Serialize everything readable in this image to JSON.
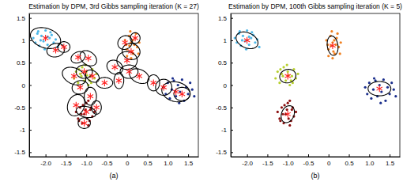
{
  "chart_data": [
    {
      "type": "scatter",
      "title": "Estimation by DPM, 3rd Gibbs sampling iteration (K = 27)",
      "caption": "(a)",
      "grid": false,
      "xlim": [
        -2.4,
        1.75
      ],
      "ylim": [
        -1.6,
        1.6
      ],
      "xticks": [
        {
          "value": -2,
          "label": "-2.0"
        },
        -1.5,
        {
          "value": -1,
          "label": "-1.0"
        },
        -0.5,
        0,
        0.5,
        {
          "value": 1,
          "label": "1.0"
        },
        1.5
      ],
      "yticks": [
        -1.5,
        -1,
        -0.5,
        0,
        0.5,
        1,
        1.5
      ],
      "series": [
        {
          "color": "#4fb8e8",
          "x": [
            -2.3,
            -2.25,
            -2.2,
            -2.15,
            -2.1,
            -2.05,
            -2.0,
            -1.95,
            -1.9,
            -1.85,
            -1.8,
            -1.75,
            -1.7,
            -2.18,
            -2.02,
            -1.88,
            -2.12,
            -1.95
          ],
          "values": [
            1.05,
            0.95,
            1.15,
            0.88,
            1.1,
            0.98,
            1.22,
            0.9,
            1.05,
            1.12,
            0.95,
            1.02,
            0.85,
            1.2,
            0.8,
            1.18,
            1.0,
            1.08
          ]
        },
        {
          "color": "#f08020",
          "x": [
            -0.05,
            0.0,
            0.05,
            0.1,
            0.15,
            0.2,
            0.25,
            0.3,
            0.0,
            0.08,
            0.18,
            0.12,
            0.22,
            -0.02,
            0.28,
            0.06,
            0.14,
            0.1
          ],
          "values": [
            1.0,
            0.8,
            1.1,
            0.95,
            0.7,
            1.05,
            0.85,
            0.95,
            0.65,
            1.2,
            0.9,
            0.75,
            1.15,
            0.9,
            0.7,
            0.88,
            1.0,
            0.6
          ]
        },
        {
          "color": "#b8d030",
          "x": [
            -1.3,
            -1.25,
            -1.2,
            -1.15,
            -1.1,
            -1.05,
            -1.0,
            -0.95,
            -0.9,
            -0.85,
            -0.8,
            -0.75,
            -1.12,
            -1.02,
            -0.92,
            -1.18,
            -0.98,
            -0.88
          ],
          "values": [
            0.15,
            0.3,
            0.05,
            0.25,
            0.4,
            0.1,
            0.3,
            0.0,
            0.2,
            0.35,
            0.15,
            0.25,
            0.2,
            0.45,
            0.1,
            0.35,
            0.22,
            0.05
          ]
        },
        {
          "color": "#8b1010",
          "x": [
            -1.25,
            -1.2,
            -1.15,
            -1.1,
            -1.05,
            -1.0,
            -0.95,
            -0.9,
            -0.85,
            -0.8,
            -1.08,
            -0.98,
            -0.92,
            -1.12,
            -1.02,
            -0.88,
            -1.18,
            -0.95
          ],
          "values": [
            -0.6,
            -0.75,
            -0.5,
            -0.85,
            -0.65,
            -0.4,
            -0.9,
            -0.55,
            -0.7,
            -0.6,
            -0.45,
            -0.75,
            -0.8,
            -0.65,
            -0.55,
            -0.5,
            -0.8,
            -0.35
          ]
        },
        {
          "color": "#1a2e8c",
          "x": [
            0.9,
            0.95,
            1.0,
            1.05,
            1.1,
            1.15,
            1.2,
            1.25,
            1.3,
            1.35,
            1.4,
            1.45,
            1.5,
            1.55,
            1.6,
            1.65,
            1.28,
            1.12
          ],
          "values": [
            -0.05,
            -0.2,
            0.05,
            -0.3,
            -0.1,
            0.1,
            -0.25,
            0.0,
            -0.15,
            0.12,
            -0.35,
            -0.05,
            -0.2,
            0.05,
            -0.1,
            -0.25,
            -0.4,
            0.15
          ]
        }
      ],
      "components": {
        "x": [
          -2.0,
          -1.75,
          -1.55,
          -1.2,
          -0.95,
          -1.3,
          -1.05,
          -0.85,
          -1.15,
          -0.9,
          -1.25,
          -1.0,
          -0.75,
          -1.05,
          -0.55,
          -0.3,
          -0.2,
          0.0,
          0.1,
          -0.05,
          0.2,
          0.05,
          0.3,
          0.65,
          0.9,
          1.2,
          1.35
        ],
        "y": [
          1.05,
          0.78,
          0.85,
          0.62,
          0.6,
          0.2,
          0.3,
          0.2,
          -0.05,
          -0.25,
          -0.45,
          -0.6,
          -0.5,
          -0.85,
          0.05,
          0.4,
          0.1,
          0.55,
          0.75,
          0.95,
          1.05,
          0.3,
          0.2,
          0.05,
          -0.05,
          -0.15,
          -0.2
        ],
        "rx": [
          0.38,
          0.22,
          0.15,
          0.18,
          0.15,
          0.18,
          0.2,
          0.18,
          0.2,
          0.15,
          0.25,
          0.12,
          0.12,
          0.15,
          0.12,
          0.15,
          0.12,
          0.2,
          0.18,
          0.18,
          0.12,
          0.22,
          0.15,
          0.15,
          0.18,
          0.35,
          0.2
        ],
        "ry": [
          0.22,
          0.15,
          0.12,
          0.12,
          0.22,
          0.3,
          0.15,
          0.12,
          0.15,
          0.2,
          0.2,
          0.25,
          0.15,
          0.12,
          0.2,
          0.2,
          0.18,
          0.25,
          0.22,
          0.15,
          0.12,
          0.15,
          0.25,
          0.18,
          0.2,
          0.22,
          0.15
        ],
        "angle": [
          -15,
          10,
          0,
          20,
          60,
          70,
          0,
          -30,
          10,
          0,
          60,
          80,
          0,
          0,
          90,
          70,
          0,
          90,
          80,
          20,
          0,
          0,
          70,
          0,
          90,
          -10,
          0
        ]
      }
    },
    {
      "type": "scatter",
      "title": "Estimation by DPM, 100th Gibbs sampling iteration (K = 5)",
      "caption": "(b)",
      "grid": false,
      "xlim": [
        -2.4,
        1.75
      ],
      "ylim": [
        -1.6,
        1.6
      ],
      "xticks": [
        {
          "value": -2,
          "label": "-2.0"
        },
        -1.5,
        {
          "value": -1,
          "label": "-1.0"
        },
        -0.5,
        0,
        0.5,
        {
          "value": 1,
          "label": "1.0"
        },
        1.5
      ],
      "yticks": [
        -1.5,
        -1,
        -0.5,
        0,
        0.5,
        1,
        1.5
      ],
      "series": [
        {
          "color": "#4fb8e8",
          "x": [
            -2.3,
            -2.25,
            -2.2,
            -2.15,
            -2.1,
            -2.05,
            -2.0,
            -1.95,
            -1.9,
            -1.85,
            -1.8,
            -1.75,
            -1.7,
            -2.18,
            -2.02,
            -1.88,
            -2.12,
            -1.95
          ],
          "values": [
            1.05,
            0.95,
            1.15,
            0.88,
            1.1,
            0.98,
            1.22,
            0.9,
            1.05,
            1.12,
            0.95,
            1.02,
            0.85,
            1.2,
            0.8,
            1.18,
            1.0,
            1.08
          ]
        },
        {
          "color": "#f08020",
          "x": [
            -0.05,
            0.0,
            0.05,
            0.1,
            0.15,
            0.2,
            0.25,
            0.3,
            0.0,
            0.08,
            0.18,
            0.12,
            0.22,
            -0.02,
            0.28,
            0.06,
            0.14,
            0.1
          ],
          "values": [
            1.0,
            0.8,
            1.1,
            0.95,
            0.7,
            1.05,
            0.85,
            0.95,
            0.65,
            1.2,
            0.9,
            0.75,
            1.15,
            0.9,
            0.7,
            0.88,
            1.0,
            0.6
          ]
        },
        {
          "color": "#b8d030",
          "x": [
            -1.3,
            -1.25,
            -1.2,
            -1.15,
            -1.1,
            -1.05,
            -1.0,
            -0.95,
            -0.9,
            -0.85,
            -0.8,
            -0.75,
            -1.12,
            -1.02,
            -0.92,
            -1.18,
            -0.98,
            -0.88
          ],
          "values": [
            0.15,
            0.3,
            0.05,
            0.25,
            0.4,
            0.1,
            0.3,
            0.0,
            0.2,
            0.35,
            0.15,
            0.25,
            0.2,
            0.45,
            0.1,
            0.35,
            0.22,
            0.05
          ]
        },
        {
          "color": "#8b1010",
          "x": [
            -1.25,
            -1.2,
            -1.15,
            -1.1,
            -1.05,
            -1.0,
            -0.95,
            -0.9,
            -0.85,
            -0.8,
            -1.08,
            -0.98,
            -0.92,
            -1.12,
            -1.02,
            -0.88,
            -1.18,
            -0.95
          ],
          "values": [
            -0.6,
            -0.75,
            -0.5,
            -0.85,
            -0.65,
            -0.4,
            -0.9,
            -0.55,
            -0.7,
            -0.6,
            -0.45,
            -0.75,
            -0.8,
            -0.65,
            -0.55,
            -0.5,
            -0.8,
            -0.35
          ]
        },
        {
          "color": "#1a2e8c",
          "x": [
            0.9,
            0.95,
            1.0,
            1.05,
            1.1,
            1.15,
            1.2,
            1.25,
            1.3,
            1.35,
            1.4,
            1.45,
            1.5,
            1.55,
            1.6,
            1.65,
            1.28,
            1.12
          ],
          "values": [
            -0.05,
            -0.2,
            0.05,
            -0.3,
            -0.1,
            0.1,
            -0.25,
            0.0,
            -0.15,
            0.12,
            -0.35,
            -0.05,
            -0.2,
            0.05,
            -0.1,
            -0.25,
            -0.4,
            0.15
          ]
        }
      ],
      "components": {
        "x": [
          -2.0,
          0.1,
          -1.0,
          -1.0,
          1.25
        ],
        "y": [
          1.0,
          0.88,
          0.2,
          -0.65,
          -0.08
        ],
        "rx": [
          0.28,
          0.13,
          0.2,
          0.2,
          0.28
        ],
        "ry": [
          0.17,
          0.22,
          0.15,
          0.15,
          0.16
        ],
        "angle": [
          -20,
          10,
          10,
          60,
          0
        ]
      }
    }
  ]
}
